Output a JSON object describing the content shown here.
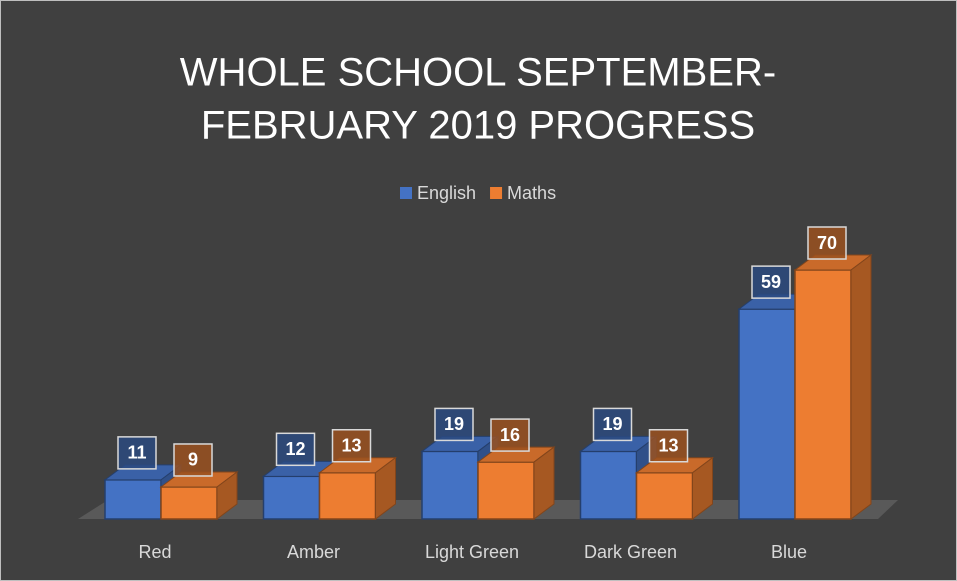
{
  "chart_data": {
    "type": "bar3d",
    "title": [
      "WHOLE SCHOOL SEPTEMBER-",
      "FEBRUARY 2019 PROGRESS"
    ],
    "categories": [
      "Red",
      "Amber",
      "Light Green",
      "Dark Green",
      "Blue"
    ],
    "series": [
      {
        "name": "English",
        "color": "#4472c4",
        "values": [
          11,
          12,
          19,
          19,
          59
        ]
      },
      {
        "name": "Maths",
        "color": "#ed7d31",
        "values": [
          9,
          13,
          16,
          13,
          70
        ]
      }
    ],
    "legend": "top"
  }
}
